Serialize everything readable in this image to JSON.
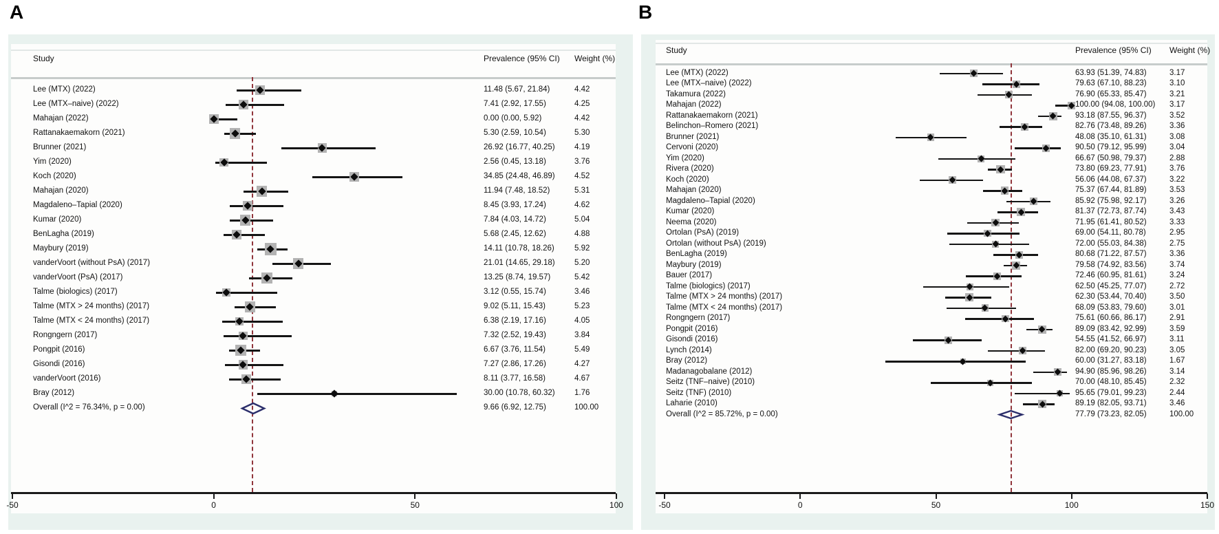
{
  "figure_title": "",
  "colors": {
    "panel_background": "#e9f2ef",
    "plot_background": "#fdfdfc",
    "ci_line": "#141414",
    "weight_square": "#b3b3b3",
    "point_marker": "#0d0d0d",
    "reference_line": "#90353b",
    "overall_diamond": "#2b2e6b",
    "axis": "#1a1a1a"
  },
  "chart_data": [
    {
      "type": "scatter",
      "subtype": "forest-plot",
      "panel_label": "A",
      "columns": {
        "study": "Study",
        "prevalence": "Prevalence (95% CI)",
        "weight": "Weight (%)"
      },
      "axis": {
        "min": -50,
        "max": 100,
        "tick_values": [
          -50,
          0,
          50,
          100
        ],
        "tick_labels": [
          "-50",
          "0",
          "50",
          "100"
        ]
      },
      "reference_value": 9.66,
      "legend_position": "none",
      "grid": false,
      "studies": [
        {
          "name": "Lee (MTX) (2022)",
          "est": 11.48,
          "lo": 5.67,
          "hi": 21.84,
          "weight": 4.42,
          "ci_text": "11.48 (5.67, 21.84)",
          "weight_text": "4.42"
        },
        {
          "name": "Lee (MTX–naive) (2022)",
          "est": 7.41,
          "lo": 2.92,
          "hi": 17.55,
          "weight": 4.25,
          "ci_text": "7.41 (2.92, 17.55)",
          "weight_text": "4.25"
        },
        {
          "name": "Mahajan (2022)",
          "est": 0.0,
          "lo": 0.0,
          "hi": 5.92,
          "weight": 4.42,
          "ci_text": "0.00 (0.00, 5.92)",
          "weight_text": "4.42"
        },
        {
          "name": "Rattanakaemakorn (2021)",
          "est": 5.3,
          "lo": 2.59,
          "hi": 10.54,
          "weight": 5.3,
          "ci_text": "5.30 (2.59, 10.54)",
          "weight_text": "5.30"
        },
        {
          "name": "Brunner (2021)",
          "est": 26.92,
          "lo": 16.77,
          "hi": 40.25,
          "weight": 4.19,
          "ci_text": "26.92 (16.77, 40.25)",
          "weight_text": "4.19"
        },
        {
          "name": "Yim (2020)",
          "est": 2.56,
          "lo": 0.45,
          "hi": 13.18,
          "weight": 3.76,
          "ci_text": "2.56 (0.45, 13.18)",
          "weight_text": "3.76"
        },
        {
          "name": "Koch (2020)",
          "est": 34.85,
          "lo": 24.48,
          "hi": 46.89,
          "weight": 4.52,
          "ci_text": "34.85 (24.48, 46.89)",
          "weight_text": "4.52"
        },
        {
          "name": "Mahajan (2020)",
          "est": 11.94,
          "lo": 7.48,
          "hi": 18.52,
          "weight": 5.31,
          "ci_text": "11.94 (7.48, 18.52)",
          "weight_text": "5.31"
        },
        {
          "name": "Magdaleno–Tapial (2020)",
          "est": 8.45,
          "lo": 3.93,
          "hi": 17.24,
          "weight": 4.62,
          "ci_text": "8.45 (3.93, 17.24)",
          "weight_text": "4.62"
        },
        {
          "name": "Kumar (2020)",
          "est": 7.84,
          "lo": 4.03,
          "hi": 14.72,
          "weight": 5.04,
          "ci_text": "7.84 (4.03, 14.72)",
          "weight_text": "5.04"
        },
        {
          "name": "BenLagha (2019)",
          "est": 5.68,
          "lo": 2.45,
          "hi": 12.62,
          "weight": 4.88,
          "ci_text": "5.68 (2.45, 12.62)",
          "weight_text": "4.88"
        },
        {
          "name": "Maybury (2019)",
          "est": 14.11,
          "lo": 10.78,
          "hi": 18.26,
          "weight": 5.92,
          "ci_text": "14.11 (10.78, 18.26)",
          "weight_text": "5.92"
        },
        {
          "name": "vanderVoort (without PsA) (2017)",
          "est": 21.01,
          "lo": 14.65,
          "hi": 29.18,
          "weight": 5.2,
          "ci_text": "21.01 (14.65, 29.18)",
          "weight_text": "5.20"
        },
        {
          "name": "vanderVoort (PsA) (2017)",
          "est": 13.25,
          "lo": 8.74,
          "hi": 19.57,
          "weight": 5.42,
          "ci_text": "13.25 (8.74, 19.57)",
          "weight_text": "5.42"
        },
        {
          "name": "Talme (biologics) (2017)",
          "est": 3.12,
          "lo": 0.55,
          "hi": 15.74,
          "weight": 3.46,
          "ci_text": "3.12 (0.55, 15.74)",
          "weight_text": "3.46"
        },
        {
          "name": "Talme (MTX > 24 months) (2017)",
          "est": 9.02,
          "lo": 5.11,
          "hi": 15.43,
          "weight": 5.23,
          "ci_text": "9.02 (5.11, 15.43)",
          "weight_text": "5.23"
        },
        {
          "name": "Talme (MTX < 24 months) (2017)",
          "est": 6.38,
          "lo": 2.19,
          "hi": 17.16,
          "weight": 4.05,
          "ci_text": "6.38 (2.19, 17.16)",
          "weight_text": "4.05"
        },
        {
          "name": "Rongngern (2017)",
          "est": 7.32,
          "lo": 2.52,
          "hi": 19.43,
          "weight": 3.84,
          "ci_text": "7.32 (2.52, 19.43)",
          "weight_text": "3.84"
        },
        {
          "name": "Pongpit (2016)",
          "est": 6.67,
          "lo": 3.76,
          "hi": 11.54,
          "weight": 5.49,
          "ci_text": "6.67 (3.76, 11.54)",
          "weight_text": "5.49"
        },
        {
          "name": "Gisondi (2016)",
          "est": 7.27,
          "lo": 2.86,
          "hi": 17.26,
          "weight": 4.27,
          "ci_text": "7.27 (2.86, 17.26)",
          "weight_text": "4.27"
        },
        {
          "name": "vanderVoort (2016)",
          "est": 8.11,
          "lo": 3.77,
          "hi": 16.58,
          "weight": 4.67,
          "ci_text": "8.11 (3.77, 16.58)",
          "weight_text": "4.67"
        },
        {
          "name": "Bray (2012)",
          "est": 30.0,
          "lo": 10.78,
          "hi": 60.32,
          "weight": 1.76,
          "ci_text": "30.00 (10.78, 60.32)",
          "weight_text": "1.76"
        }
      ],
      "overall": {
        "label": "Overall  (I^2 = 76.34%, p = 0.00)",
        "est": 9.66,
        "lo": 6.92,
        "hi": 12.75,
        "ci_text": "9.66 (6.92, 12.75)",
        "weight_text": "100.00"
      }
    },
    {
      "type": "scatter",
      "subtype": "forest-plot",
      "panel_label": "B",
      "columns": {
        "study": "Study",
        "prevalence": "Prevalence (95% CI)",
        "weight": "Weight (%)"
      },
      "axis": {
        "min": -50,
        "max": 150,
        "tick_values": [
          -50,
          0,
          50,
          100,
          150
        ],
        "tick_labels": [
          "-50",
          "0",
          "50",
          "100",
          "150"
        ]
      },
      "reference_value": 77.79,
      "legend_position": "none",
      "grid": false,
      "studies": [
        {
          "name": "Lee (MTX) (2022)",
          "est": 63.93,
          "lo": 51.39,
          "hi": 74.83,
          "weight": 3.17,
          "ci_text": "63.93 (51.39, 74.83)",
          "weight_text": "3.17"
        },
        {
          "name": "Lee (MTX–naive) (2022)",
          "est": 79.63,
          "lo": 67.1,
          "hi": 88.23,
          "weight": 3.1,
          "ci_text": "79.63 (67.10, 88.23)",
          "weight_text": "3.10"
        },
        {
          "name": "Takamura (2022)",
          "est": 76.9,
          "lo": 65.33,
          "hi": 85.47,
          "weight": 3.21,
          "ci_text": "76.90 (65.33, 85.47)",
          "weight_text": "3.21"
        },
        {
          "name": "Mahajan (2022)",
          "est": 100.0,
          "lo": 94.08,
          "hi": 100.0,
          "weight": 3.17,
          "ci_text": "100.00 (94.08, 100.00)",
          "weight_text": "3.17"
        },
        {
          "name": "Rattanakaemakorn (2021)",
          "est": 93.18,
          "lo": 87.55,
          "hi": 96.37,
          "weight": 3.52,
          "ci_text": "93.18 (87.55, 96.37)",
          "weight_text": "3.52"
        },
        {
          "name": "Belinchon–Romero (2021)",
          "est": 82.76,
          "lo": 73.48,
          "hi": 89.26,
          "weight": 3.36,
          "ci_text": "82.76 (73.48, 89.26)",
          "weight_text": "3.36"
        },
        {
          "name": "Brunner (2021)",
          "est": 48.08,
          "lo": 35.1,
          "hi": 61.31,
          "weight": 3.08,
          "ci_text": "48.08 (35.10, 61.31)",
          "weight_text": "3.08"
        },
        {
          "name": "Cervoni (2020)",
          "est": 90.5,
          "lo": 79.12,
          "hi": 95.99,
          "weight": 3.04,
          "ci_text": "90.50 (79.12, 95.99)",
          "weight_text": "3.04"
        },
        {
          "name": "Yim (2020)",
          "est": 66.67,
          "lo": 50.98,
          "hi": 79.37,
          "weight": 2.88,
          "ci_text": "66.67 (50.98, 79.37)",
          "weight_text": "2.88"
        },
        {
          "name": "Rivera (2020)",
          "est": 73.8,
          "lo": 69.23,
          "hi": 77.91,
          "weight": 3.76,
          "ci_text": "73.80 (69.23, 77.91)",
          "weight_text": "3.76"
        },
        {
          "name": "Koch (2020)",
          "est": 56.06,
          "lo": 44.08,
          "hi": 67.37,
          "weight": 3.22,
          "ci_text": "56.06 (44.08, 67.37)",
          "weight_text": "3.22"
        },
        {
          "name": "Mahajan (2020)",
          "est": 75.37,
          "lo": 67.44,
          "hi": 81.89,
          "weight": 3.53,
          "ci_text": "75.37 (67.44, 81.89)",
          "weight_text": "3.53"
        },
        {
          "name": "Magdaleno–Tapial (2020)",
          "est": 85.92,
          "lo": 75.98,
          "hi": 92.17,
          "weight": 3.26,
          "ci_text": "85.92 (75.98, 92.17)",
          "weight_text": "3.26"
        },
        {
          "name": "Kumar (2020)",
          "est": 81.37,
          "lo": 72.73,
          "hi": 87.74,
          "weight": 3.43,
          "ci_text": "81.37 (72.73, 87.74)",
          "weight_text": "3.43"
        },
        {
          "name": "Neema (2020)",
          "est": 71.95,
          "lo": 61.41,
          "hi": 80.52,
          "weight": 3.33,
          "ci_text": "71.95 (61.41, 80.52)",
          "weight_text": "3.33"
        },
        {
          "name": "Ortolan (PsA) (2019)",
          "est": 69.0,
          "lo": 54.11,
          "hi": 80.78,
          "weight": 2.95,
          "ci_text": "69.00 (54.11, 80.78)",
          "weight_text": "2.95"
        },
        {
          "name": "Ortolan (without PsA) (2019)",
          "est": 72.0,
          "lo": 55.03,
          "hi": 84.38,
          "weight": 2.75,
          "ci_text": "72.00 (55.03, 84.38)",
          "weight_text": "2.75"
        },
        {
          "name": "BenLagha (2019)",
          "est": 80.68,
          "lo": 71.22,
          "hi": 87.57,
          "weight": 3.36,
          "ci_text": "80.68 (71.22, 87.57)",
          "weight_text": "3.36"
        },
        {
          "name": "Maybury (2019)",
          "est": 79.58,
          "lo": 74.92,
          "hi": 83.56,
          "weight": 3.74,
          "ci_text": "79.58 (74.92, 83.56)",
          "weight_text": "3.74"
        },
        {
          "name": "Bauer (2017)",
          "est": 72.46,
          "lo": 60.95,
          "hi": 81.61,
          "weight": 3.24,
          "ci_text": "72.46 (60.95, 81.61)",
          "weight_text": "3.24"
        },
        {
          "name": "Talme (biologics) (2017)",
          "est": 62.5,
          "lo": 45.25,
          "hi": 77.07,
          "weight": 2.72,
          "ci_text": "62.50 (45.25, 77.07)",
          "weight_text": "2.72"
        },
        {
          "name": "Talme (MTX > 24 months) (2017)",
          "est": 62.3,
          "lo": 53.44,
          "hi": 70.4,
          "weight": 3.5,
          "ci_text": "62.30 (53.44, 70.40)",
          "weight_text": "3.50"
        },
        {
          "name": "Talme (MTX < 24 months) (2017)",
          "est": 68.09,
          "lo": 53.83,
          "hi": 79.6,
          "weight": 3.01,
          "ci_text": "68.09 (53.83, 79.60)",
          "weight_text": "3.01"
        },
        {
          "name": "Rongngern (2017)",
          "est": 75.61,
          "lo": 60.66,
          "hi": 86.17,
          "weight": 2.91,
          "ci_text": "75.61 (60.66, 86.17)",
          "weight_text": "2.91"
        },
        {
          "name": "Pongpit (2016)",
          "est": 89.09,
          "lo": 83.42,
          "hi": 92.99,
          "weight": 3.59,
          "ci_text": "89.09 (83.42, 92.99)",
          "weight_text": "3.59"
        },
        {
          "name": "Gisondi (2016)",
          "est": 54.55,
          "lo": 41.52,
          "hi": 66.97,
          "weight": 3.11,
          "ci_text": "54.55 (41.52, 66.97)",
          "weight_text": "3.11"
        },
        {
          "name": "Lynch (2014)",
          "est": 82.0,
          "lo": 69.2,
          "hi": 90.23,
          "weight": 3.05,
          "ci_text": "82.00 (69.20, 90.23)",
          "weight_text": "3.05"
        },
        {
          "name": "Bray (2012)",
          "est": 60.0,
          "lo": 31.27,
          "hi": 83.18,
          "weight": 1.67,
          "ci_text": "60.00 (31.27, 83.18)",
          "weight_text": "1.67"
        },
        {
          "name": "Madanagobalane (2012)",
          "est": 94.9,
          "lo": 85.96,
          "hi": 98.26,
          "weight": 3.14,
          "ci_text": "94.90 (85.96, 98.26)",
          "weight_text": "3.14"
        },
        {
          "name": "Seitz (TNF–naive) (2010)",
          "est": 70.0,
          "lo": 48.1,
          "hi": 85.45,
          "weight": 2.32,
          "ci_text": "70.00 (48.10, 85.45)",
          "weight_text": "2.32"
        },
        {
          "name": "Seitz (TNF) (2010)",
          "est": 95.65,
          "lo": 79.01,
          "hi": 99.23,
          "weight": 2.44,
          "ci_text": "95.65 (79.01, 99.23)",
          "weight_text": "2.44"
        },
        {
          "name": "Laharie (2010)",
          "est": 89.19,
          "lo": 82.05,
          "hi": 93.71,
          "weight": 3.46,
          "ci_text": "89.19 (82.05, 93.71)",
          "weight_text": "3.46"
        }
      ],
      "overall": {
        "label": "Overall  (I^2 = 85.72%, p = 0.00)",
        "est": 77.79,
        "lo": 73.23,
        "hi": 82.05,
        "ci_text": "77.79 (73.23, 82.05)",
        "weight_text": "100.00"
      }
    }
  ]
}
